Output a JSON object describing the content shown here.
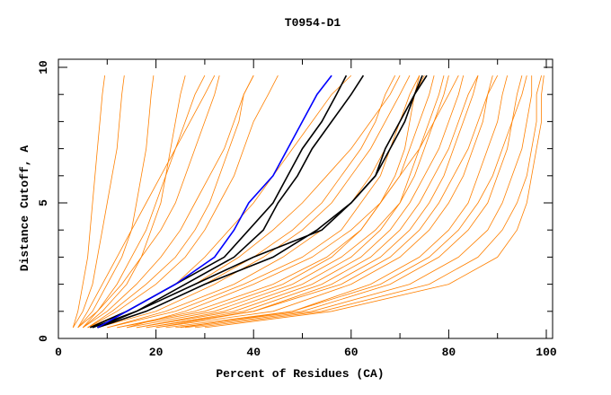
{
  "chart_data": {
    "type": "line",
    "title": "T0954-D1",
    "xlabel": "Percent of Residues (CA)",
    "ylabel": "Distance Cutoff, A",
    "xlim": [
      0,
      100
    ],
    "ylim": [
      0,
      10
    ],
    "x_ticks": [
      "0",
      "20",
      "40",
      "60",
      "80",
      "100"
    ],
    "y_ticks": [
      "0",
      "5",
      "10"
    ],
    "grid": false,
    "colors": {
      "other_models": "#ff8000",
      "highlight": "#000000",
      "best": "#0000ff"
    },
    "y_levels": [
      0.4,
      1,
      2,
      3,
      4,
      5,
      6,
      7,
      8,
      9,
      9.7
    ],
    "series_other": [
      [
        3,
        4,
        5,
        6,
        6.5,
        7,
        7.5,
        8,
        8.5,
        9,
        9.5
      ],
      [
        3,
        5,
        7,
        8,
        9,
        10,
        11,
        12,
        12.5,
        13,
        13.5
      ],
      [
        4,
        7,
        10,
        13,
        15,
        16,
        17,
        18,
        18.5,
        19,
        19.5
      ],
      [
        5,
        9,
        14,
        17,
        19,
        21,
        22,
        23,
        24,
        25,
        26
      ],
      [
        4,
        8,
        13,
        17,
        21,
        24,
        26,
        28,
        30,
        32,
        33
      ],
      [
        5,
        10,
        16,
        21,
        25,
        28,
        31,
        34,
        36,
        38,
        40
      ],
      [
        6,
        12,
        20,
        26,
        30,
        33,
        36,
        38,
        40,
        43,
        45
      ],
      [
        6,
        14,
        24,
        30,
        35,
        40,
        44,
        48,
        52,
        56,
        60
      ],
      [
        7,
        16,
        28,
        37,
        44,
        50,
        55,
        60,
        64,
        68,
        70
      ],
      [
        8,
        20,
        32,
        42,
        50,
        56,
        60,
        64,
        67,
        70,
        72
      ],
      [
        10,
        24,
        38,
        50,
        58,
        62,
        66,
        68,
        70,
        72,
        74
      ],
      [
        12,
        28,
        44,
        55,
        62,
        66,
        70,
        72,
        74,
        76,
        77
      ],
      [
        14,
        32,
        48,
        58,
        65,
        70,
        73,
        75,
        77,
        79,
        80
      ],
      [
        16,
        36,
        52,
        62,
        68,
        72,
        75,
        78,
        80,
        82,
        83
      ],
      [
        18,
        40,
        56,
        66,
        72,
        76,
        79,
        81,
        83,
        85,
        86
      ],
      [
        20,
        44,
        60,
        70,
        76,
        80,
        83,
        85,
        87,
        88,
        89
      ],
      [
        22,
        48,
        64,
        74,
        80,
        84,
        86,
        88,
        90,
        91,
        92
      ],
      [
        24,
        50,
        68,
        78,
        84,
        88,
        90,
        92,
        93,
        94,
        95
      ],
      [
        26,
        52,
        72,
        82,
        88,
        91,
        93,
        95,
        96,
        97,
        97
      ],
      [
        28,
        54,
        76,
        86,
        91,
        94,
        96,
        97,
        98,
        98,
        99
      ],
      [
        30,
        56,
        80,
        90,
        94,
        96,
        97,
        98,
        99,
        99,
        99.5
      ],
      [
        10,
        22,
        36,
        46,
        54,
        60,
        64,
        67,
        70,
        73,
        75
      ],
      [
        8,
        18,
        30,
        40,
        48,
        54,
        58,
        62,
        65,
        67,
        69
      ],
      [
        12,
        30,
        46,
        56,
        62,
        66,
        69,
        71,
        72,
        73,
        74
      ],
      [
        4,
        6,
        9,
        12,
        15,
        18,
        21,
        24,
        27,
        30,
        32
      ],
      [
        5,
        8,
        12,
        15,
        18,
        20,
        22,
        24,
        26,
        28,
        30
      ],
      [
        6,
        11,
        18,
        24,
        28,
        31,
        33,
        35,
        37,
        38,
        40
      ],
      [
        20,
        40,
        58,
        68,
        74,
        78,
        81,
        84,
        86,
        88,
        90
      ],
      [
        18,
        38,
        54,
        64,
        70,
        74,
        77,
        80,
        82,
        84,
        86
      ],
      [
        25,
        48,
        66,
        76,
        82,
        86,
        89,
        91,
        93,
        95,
        96
      ],
      [
        14,
        26,
        40,
        52,
        60,
        66,
        70,
        74,
        77,
        80,
        82
      ],
      [
        16,
        34,
        50,
        60,
        66,
        70,
        72,
        74,
        76,
        78,
        79
      ]
    ],
    "series_highlight": [
      [
        8,
        16,
        26,
        36,
        42,
        45,
        49,
        52,
        56,
        60,
        62.5
      ],
      [
        6.5,
        14,
        24,
        34,
        39,
        44,
        47,
        50,
        54,
        57,
        59
      ],
      [
        8,
        18,
        30,
        44,
        53,
        60,
        65,
        67,
        70,
        73,
        75.5
      ],
      [
        7,
        16,
        28,
        40,
        54,
        60,
        65,
        68,
        71,
        73,
        74.6
      ]
    ],
    "series_best": [
      8,
      14,
      24,
      32,
      36,
      39,
      44,
      47,
      50,
      53,
      56
    ]
  }
}
